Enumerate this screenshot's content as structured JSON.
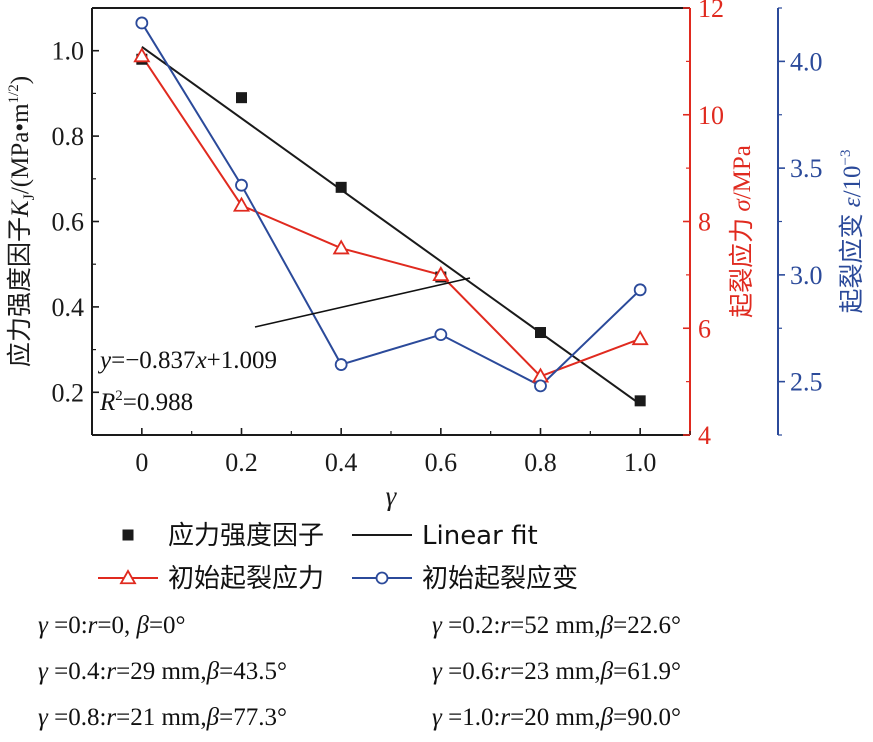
{
  "chart_data": {
    "type": "line",
    "x": [
      0,
      0.2,
      0.4,
      0.6,
      0.8,
      1.0
    ],
    "x_ticks": [
      "0",
      "0.2",
      "0.4",
      "0.6",
      "0.8",
      "1.0"
    ],
    "xlabel": "γ",
    "xlim": [
      -0.1,
      1.1
    ],
    "y_left": {
      "label_prefix": "应力强度因子",
      "label_var": "K",
      "label_sub": "J",
      "label_unit": "/(MPa•m",
      "label_sup": "1/2",
      "label_close": ")",
      "ticks": [
        "0.2",
        "0.4",
        "0.6",
        "0.8",
        "1.0"
      ],
      "ylim": [
        0.1,
        1.1
      ],
      "color": "#1a1a1a"
    },
    "y_right1": {
      "label_prefix": "起裂应力 ",
      "label_var": "σ",
      "label_unit": "/MPa",
      "ticks": [
        "4",
        "6",
        "8",
        "10",
        "12"
      ],
      "ylim": [
        4,
        12
      ],
      "color": "#e02a1f"
    },
    "y_right2": {
      "label_prefix": "起裂应变 ",
      "label_var": "ε",
      "label_unit": "/10",
      "label_sup": "−3",
      "ticks": [
        "2.5",
        "3.0",
        "3.5",
        "4.0"
      ],
      "ylim": [
        2.25,
        4.25
      ],
      "color": "#2b4a9a"
    },
    "series": [
      {
        "name": "应力强度因子",
        "axis": "left",
        "marker": "square",
        "line": false,
        "color": "#1a1a1a",
        "values": [
          0.98,
          0.89,
          0.68,
          0.47,
          0.34,
          0.18
        ]
      },
      {
        "name": "Linear fit",
        "axis": "left",
        "marker": "none",
        "line": true,
        "color": "#1a1a1a",
        "slope": -0.837,
        "intercept": 1.009
      },
      {
        "name": "初始起裂应力",
        "axis": "right1",
        "marker": "triangle",
        "line": true,
        "color": "#e02a1f",
        "values": [
          11.1,
          8.3,
          7.5,
          7.0,
          5.1,
          5.8
        ]
      },
      {
        "name": "初始起裂应变",
        "axis": "right2",
        "marker": "circle",
        "line": true,
        "color": "#2b4a9a",
        "values": [
          4.18,
          3.42,
          2.58,
          2.72,
          2.48,
          2.93
        ]
      }
    ],
    "annotation": {
      "eq_y": "y",
      "eq_rest": "=−0.837",
      "eq_x": "x",
      "eq_tail": "+1.009",
      "r2_var": "R",
      "r2_sup": "2",
      "r2_rest": "=0.988"
    },
    "grid": false,
    "legend_position": "bottom"
  },
  "notes": [
    {
      "gamma": "γ",
      "rest_a": " =0:",
      "r": "r",
      "rest_b": "=0, ",
      "beta": "β",
      "rest_c": "=0°"
    },
    {
      "gamma": "γ",
      "rest_a": " =0.2:",
      "r": "r",
      "rest_b": "=52 mm,",
      "beta": "β",
      "rest_c": "=22.6°"
    },
    {
      "gamma": "γ",
      "rest_a": " =0.4:",
      "r": "r",
      "rest_b": "=29 mm,",
      "beta": "β",
      "rest_c": "=43.5°"
    },
    {
      "gamma": "γ",
      "rest_a": " =0.6:",
      "r": "r",
      "rest_b": "=23 mm,",
      "beta": "β",
      "rest_c": "=61.9°"
    },
    {
      "gamma": "γ",
      "rest_a": " =0.8:",
      "r": "r",
      "rest_b": "=21 mm,",
      "beta": "β",
      "rest_c": "=77.3°"
    },
    {
      "gamma": "γ",
      "rest_a": " =1.0:",
      "r": "r",
      "rest_b": "=20 mm,",
      "beta": "β",
      "rest_c": "=90.0°"
    }
  ]
}
